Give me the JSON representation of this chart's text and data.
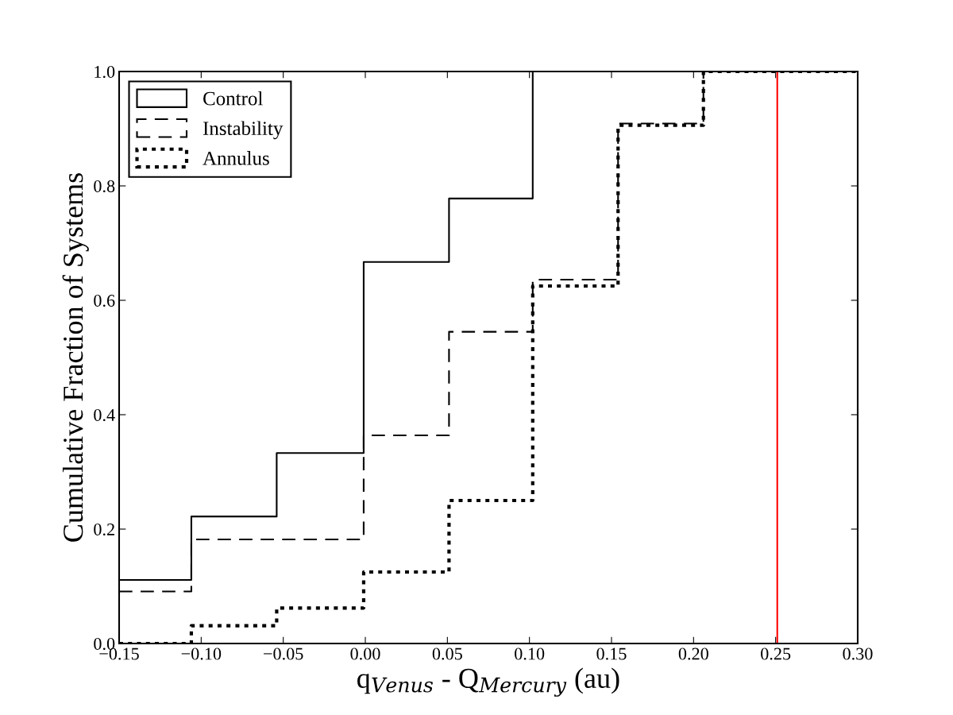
{
  "chart_data": {
    "type": "step",
    "xlabel": "q$_{Venus}$ - Q$_{Mercury}$ (au)",
    "ylabel": "Cumulative Fraction of Systems",
    "x": [
      -0.15,
      -0.106,
      -0.054,
      -0.001,
      0.051,
      0.102,
      0.154,
      0.206,
      0.3
    ],
    "series": [
      {
        "name": "Control",
        "color": "#000000",
        "line_style": "solid",
        "values": [
          0.111,
          0.222,
          0.333,
          0.667,
          0.778,
          1.0,
          1.0,
          1.0,
          1.0
        ]
      },
      {
        "name": "Instability",
        "color": "#000000",
        "line_style": "dashed",
        "values": [
          0.091,
          0.182,
          0.182,
          0.364,
          0.545,
          0.636,
          0.909,
          1.0,
          1.0
        ]
      },
      {
        "name": "Annulus",
        "color": "#000000",
        "line_style": "dotted",
        "values": [
          0.0,
          0.031,
          0.062,
          0.125,
          0.25,
          0.625,
          0.906,
          1.0,
          1.0
        ]
      }
    ],
    "ref_lines": [
      {
        "axis": "x",
        "value": 0.251,
        "color": "#ff0000"
      }
    ],
    "xlim": [
      -0.15,
      0.3
    ],
    "xticks": [
      {
        "value": -0.15,
        "label": "−0.15"
      },
      {
        "value": -0.1,
        "label": "−0.10"
      },
      {
        "value": -0.05,
        "label": "−0.05"
      },
      {
        "value": 0.0,
        "label": "0.00"
      },
      {
        "value": 0.05,
        "label": "0.05"
      },
      {
        "value": 0.1,
        "label": "0.10"
      },
      {
        "value": 0.15,
        "label": "0.15"
      },
      {
        "value": 0.2,
        "label": "0.20"
      },
      {
        "value": 0.25,
        "label": "0.25"
      },
      {
        "value": 0.3,
        "label": "0.30"
      }
    ],
    "ylim": [
      0,
      1.0
    ],
    "yticks": [
      {
        "value": 0,
        "label": "0.0"
      },
      {
        "value": 0.2,
        "label": "0.2"
      },
      {
        "value": 0.4,
        "label": "0.4"
      },
      {
        "value": 0.6,
        "label": "0.6"
      },
      {
        "value": 0.8,
        "label": "0.8"
      },
      {
        "value": 1.0,
        "label": "1.0"
      }
    ],
    "grid": false,
    "legend": "top left"
  }
}
